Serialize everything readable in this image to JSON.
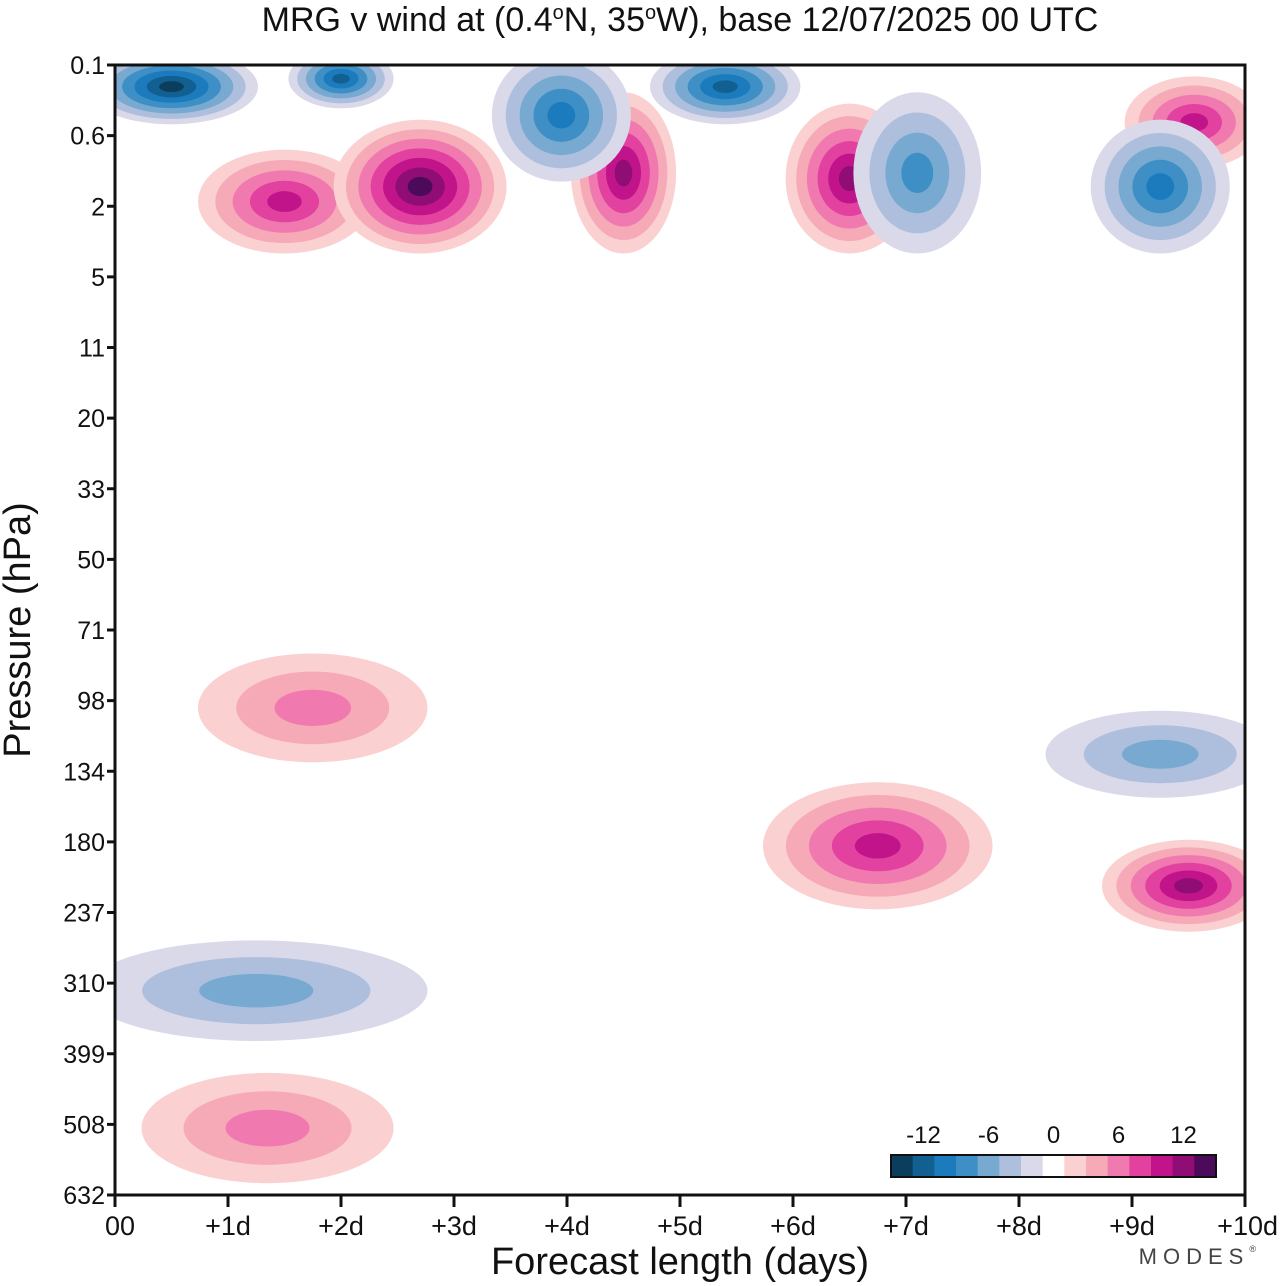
{
  "chart_data": {
    "type": "heatmap",
    "title_parts": {
      "prefix": "MRG v wind at (0.4",
      "deg1": "o",
      "mid": "N, 35",
      "deg2": "o",
      "suffix": "W),  base 12/07/2025  00 UTC"
    },
    "xlabel": "Forecast length (days)",
    "ylabel": "Pressure (hPa)",
    "x_ticks": [
      "00",
      "+1d",
      "+2d",
      "+3d",
      "+4d",
      "+5d",
      "+6d",
      "+7d",
      "+8d",
      "+9d",
      "+10d"
    ],
    "xlim": [
      0,
      10
    ],
    "y_ticks": [
      "0.1",
      "0.6",
      "2",
      "5",
      "11",
      "20",
      "33",
      "50",
      "71",
      "98",
      "134",
      "180",
      "237",
      "310",
      "399",
      "508",
      "632"
    ],
    "y_scale": "pressure (log-like, increasing downward)",
    "legend": {
      "placement": "bottom-right",
      "labels": [
        "-12",
        "-6",
        "0",
        "6",
        "12"
      ],
      "colors": [
        "#0b3e5c",
        "#125f92",
        "#1b7bbd",
        "#3d8fc6",
        "#78a9d1",
        "#aebfdd",
        "#d9d9ea",
        "#ffffff",
        "#fbd0d1",
        "#f6a9b7",
        "#f07ab0",
        "#e2419f",
        "#c1148a",
        "#8f0d74",
        "#4b0a5a"
      ]
    },
    "features": [
      {
        "sign": "+",
        "x": [
          1.0,
          2.0
        ],
        "y_hPa": [
          1.0,
          3.0
        ],
        "peak": 10
      },
      {
        "sign": "+",
        "x": [
          2.2,
          3.2
        ],
        "y_hPa": [
          0.6,
          3.0
        ],
        "peak": 14
      },
      {
        "sign": "+",
        "x": [
          4.3,
          4.7
        ],
        "y_hPa": [
          0.3,
          3.0
        ],
        "peak": 12
      },
      {
        "sign": "+",
        "x": [
          6.2,
          6.8
        ],
        "y_hPa": [
          0.4,
          3.0
        ],
        "peak": 12
      },
      {
        "sign": "+",
        "x": [
          9.2,
          9.9
        ],
        "y_hPa": [
          0.2,
          0.8
        ],
        "peak": 10
      },
      {
        "sign": "-",
        "x": [
          0.0,
          1.0
        ],
        "y_hPa": [
          0.1,
          0.3
        ],
        "peak": -13
      },
      {
        "sign": "-",
        "x": [
          1.8,
          2.2
        ],
        "y_hPa": [
          0.1,
          0.2
        ],
        "peak": -12
      },
      {
        "sign": "-",
        "x": [
          3.6,
          4.3
        ],
        "y_hPa": [
          0.1,
          1.0
        ],
        "peak": -10
      },
      {
        "sign": "-",
        "x": [
          5.0,
          5.8
        ],
        "y_hPa": [
          0.1,
          0.3
        ],
        "peak": -12
      },
      {
        "sign": "-",
        "x": [
          6.8,
          7.4
        ],
        "y_hPa": [
          0.3,
          3.0
        ],
        "peak": -8
      },
      {
        "sign": "-",
        "x": [
          8.9,
          9.6
        ],
        "y_hPa": [
          0.6,
          3.0
        ],
        "peak": -9
      },
      {
        "sign": "+",
        "x": [
          6.0,
          7.5
        ],
        "y_hPa": [
          150,
          220
        ],
        "peak": 9
      },
      {
        "sign": "+",
        "x": [
          9.0,
          10.0
        ],
        "y_hPa": [
          190,
          240
        ],
        "peak": 11
      },
      {
        "sign": "+",
        "x": [
          1.0,
          2.5
        ],
        "y_hPa": [
          85,
          120
        ],
        "peak": 5
      },
      {
        "sign": "+",
        "x": [
          0.5,
          2.2
        ],
        "y_hPa": [
          450,
          580
        ],
        "peak": 6
      },
      {
        "sign": "-",
        "x": [
          0.0,
          2.5
        ],
        "y_hPa": [
          280,
          360
        ],
        "peak": -6
      },
      {
        "sign": "-",
        "x": [
          8.5,
          10.0
        ],
        "y_hPa": [
          110,
          140
        ],
        "peak": -5
      }
    ]
  },
  "brand": {
    "name": "MODES",
    "mark": "®"
  }
}
